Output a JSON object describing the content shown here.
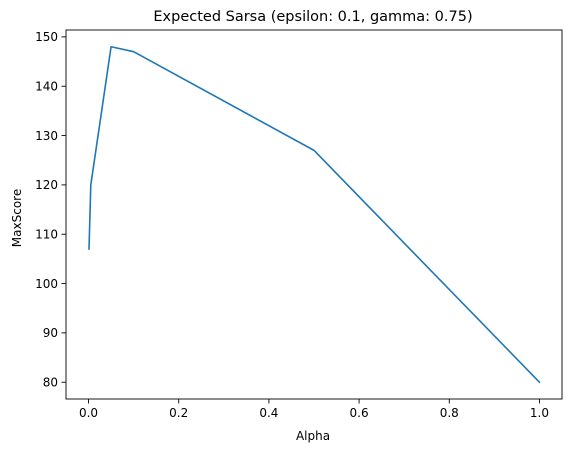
{
  "chart_data": {
    "type": "line",
    "title": "Expected Sarsa (epsilon: 0.1, gamma: 0.75)",
    "xlabel": "Alpha",
    "ylabel": "MaxScore",
    "xlim": [
      -0.05,
      1.05
    ],
    "ylim": [
      76.6,
      151.4
    ],
    "xticks": [
      0.0,
      0.2,
      0.4,
      0.6,
      0.8,
      1.0
    ],
    "xtick_labels": [
      "0.0",
      "0.2",
      "0.4",
      "0.6",
      "0.8",
      "1.0"
    ],
    "yticks": [
      80,
      90,
      100,
      110,
      120,
      130,
      140,
      150
    ],
    "ytick_labels": [
      "80",
      "90",
      "100",
      "110",
      "120",
      "130",
      "140",
      "150"
    ],
    "grid": false,
    "series": [
      {
        "color": "#1f77b4",
        "x": [
          0.001,
          0.005,
          0.05,
          0.1,
          0.5,
          1.0
        ],
        "y": [
          107,
          120,
          148,
          147,
          127,
          80
        ]
      }
    ]
  }
}
